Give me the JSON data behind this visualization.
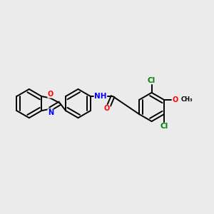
{
  "background_color": "#ebebeb",
  "bond_color": "#000000",
  "atom_colors": {
    "O": "#ff0000",
    "N": "#0000ff",
    "Cl": "#008000",
    "H": "#3a9090",
    "C": "#000000"
  },
  "figsize": [
    3.0,
    3.0
  ],
  "dpi": 100
}
